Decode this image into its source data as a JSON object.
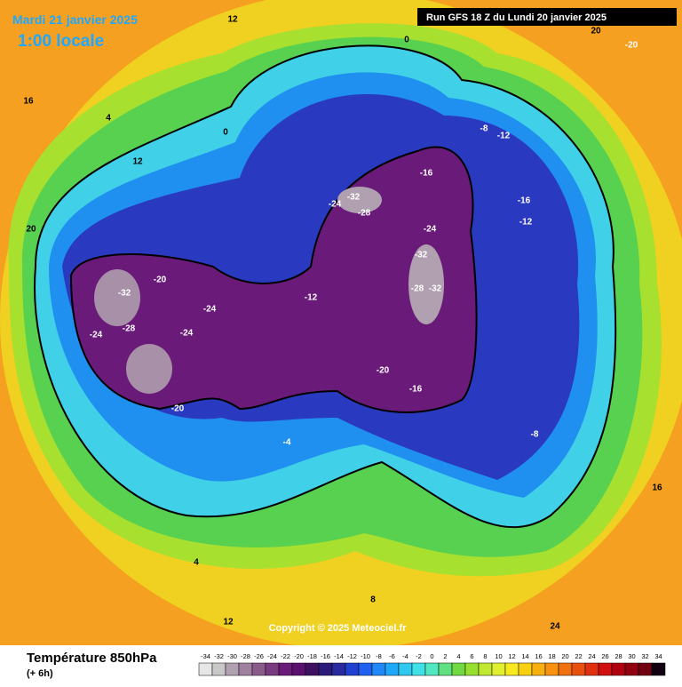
{
  "header": {
    "date": "Mardi 21 janvier 2025",
    "time": "1:00 locale",
    "run": "Run GFS 18 Z du Lundi 20 janvier 2025"
  },
  "copyright": "Copyright © 2025 Meteociel.fr",
  "legend": {
    "title": "Température 850hPa",
    "subtitle": "(+ 6h)",
    "ticks": [
      -34,
      -32,
      -30,
      -28,
      -26,
      -24,
      -22,
      -20,
      -18,
      -16,
      -14,
      -12,
      -10,
      -8,
      -6,
      -4,
      -2,
      0,
      2,
      4,
      6,
      8,
      10,
      12,
      14,
      16,
      18,
      20,
      22,
      24,
      26,
      28,
      30,
      32,
      34
    ],
    "colors": [
      "#e6e6e6",
      "#c8c8c8",
      "#b0a0b0",
      "#a080a0",
      "#8a5a8a",
      "#7a3a80",
      "#6a1a78",
      "#5a1070",
      "#401060",
      "#2a1a7a",
      "#2a2aa0",
      "#2040d0",
      "#2060f0",
      "#2088f8",
      "#20a8f8",
      "#30c8f0",
      "#40e0e8",
      "#50e8c0",
      "#60e080",
      "#70d840",
      "#98e030",
      "#c0e830",
      "#e0f030",
      "#f8e820",
      "#f8d010",
      "#f8b010",
      "#f89010",
      "#f07010",
      "#e85010",
      "#e03010",
      "#d01010",
      "#b00010",
      "#900010",
      "#700010",
      "#100010"
    ]
  },
  "map_labels": [
    -32,
    -28,
    -24,
    -20,
    -24,
    -32,
    -28,
    -24,
    -16,
    -24,
    -32,
    -28,
    -32,
    -20,
    -16,
    -12,
    -8,
    -16,
    -12,
    -8,
    -4,
    0,
    0,
    4,
    12,
    12,
    16,
    20,
    -20,
    16,
    20,
    24,
    12,
    8,
    4,
    -12,
    -24,
    -20
  ]
}
